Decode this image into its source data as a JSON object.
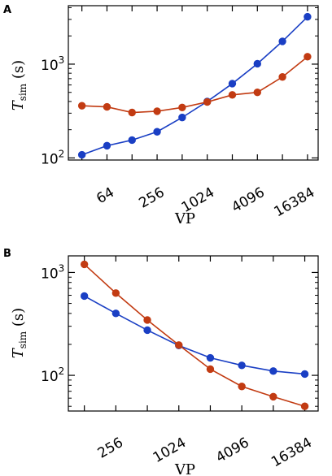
{
  "colors": {
    "blue": "#1a3fc4",
    "red": "#c23b12"
  },
  "chart_data": [
    {
      "panel": "A",
      "type": "line",
      "xscale": "log2",
      "yscale": "log10",
      "xlabel": "VP",
      "ylabel": "T_sim (s)",
      "ylabel_main": "T",
      "ylabel_sub": "sim",
      "ylabel_unit": " (s)",
      "xticks": [
        64,
        256,
        1024,
        4096,
        16384
      ],
      "xtick_labels": [
        "64",
        "256",
        "1024",
        "4096",
        "16384"
      ],
      "yticks": [
        100,
        1000
      ],
      "ytick_labels": [
        {
          "base": "10",
          "exp": "2"
        },
        {
          "base": "10",
          "exp": "3"
        }
      ],
      "xlim": [
        22,
        22000
      ],
      "ylim": [
        95,
        4200
      ],
      "x": [
        32,
        64,
        128,
        256,
        512,
        1024,
        2048,
        4096,
        8192,
        16384
      ],
      "series": [
        {
          "color": "blue",
          "values": [
            108,
            135,
            155,
            190,
            270,
            400,
            620,
            1010,
            1750,
            3200
          ]
        },
        {
          "color": "red",
          "values": [
            360,
            350,
            305,
            315,
            345,
            395,
            470,
            500,
            730,
            1200
          ]
        }
      ]
    },
    {
      "panel": "B",
      "type": "line",
      "xscale": "log2",
      "yscale": "log10",
      "xlabel": "VP",
      "ylabel": "T_sim (s)",
      "ylabel_main": "T",
      "ylabel_sub": "sim",
      "ylabel_unit": " (s)",
      "xticks": [
        256,
        1024,
        4096,
        16384
      ],
      "xtick_labels": [
        "256",
        "1024",
        "4096",
        "16384"
      ],
      "yticks": [
        100,
        1000
      ],
      "ytick_labels": [
        {
          "base": "10",
          "exp": "2"
        },
        {
          "base": "10",
          "exp": "3"
        }
      ],
      "xlim": [
        90,
        22000
      ],
      "ylim": [
        45,
        1450
      ],
      "x": [
        128,
        256,
        512,
        1024,
        2048,
        4096,
        8192,
        16384
      ],
      "series": [
        {
          "color": "blue",
          "values": [
            590,
            400,
            275,
            195,
            148,
            125,
            110,
            103
          ]
        },
        {
          "color": "red",
          "values": [
            1200,
            630,
            345,
            197,
            115,
            78,
            62,
            50
          ]
        }
      ]
    }
  ]
}
